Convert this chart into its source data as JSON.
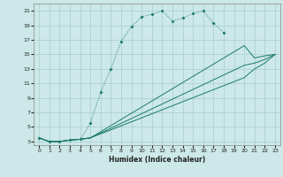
{
  "xlabel": "Humidex (Indice chaleur)",
  "bg_color": "#cce8e8",
  "grid_color": "#aacccc",
  "line_color": "#1a7a6a",
  "xlim": [
    -0.5,
    23.5
  ],
  "ylim": [
    2.5,
    22
  ],
  "xticks": [
    0,
    1,
    2,
    3,
    4,
    5,
    6,
    7,
    8,
    9,
    10,
    11,
    12,
    13,
    14,
    15,
    16,
    17,
    18,
    19,
    20,
    21,
    22,
    23
  ],
  "yticks": [
    3,
    5,
    7,
    9,
    11,
    13,
    15,
    17,
    19,
    21
  ],
  "line1_x": [
    0,
    1,
    2,
    3,
    4,
    5,
    6,
    7,
    8,
    9,
    10,
    11,
    12,
    13,
    14,
    15,
    16,
    17,
    18
  ],
  "line1_y": [
    3.5,
    3.0,
    3.0,
    3.2,
    3.3,
    5.5,
    9.8,
    13.0,
    16.8,
    18.8,
    20.2,
    20.5,
    21.0,
    19.6,
    20.0,
    20.6,
    21.0,
    19.3,
    18.0
  ],
  "line2_x": [
    0,
    1,
    2,
    3,
    4,
    5,
    20,
    21,
    22,
    23
  ],
  "line2_y": [
    3.5,
    3.0,
    3.0,
    3.2,
    3.3,
    3.5,
    16.2,
    14.5,
    14.8,
    15.0
  ],
  "line3_x": [
    0,
    1,
    2,
    3,
    4,
    5,
    20,
    21,
    22,
    23
  ],
  "line3_y": [
    3.5,
    3.0,
    3.0,
    3.2,
    3.3,
    3.5,
    13.5,
    13.8,
    14.3,
    15.0
  ],
  "line4_x": [
    0,
    1,
    2,
    3,
    4,
    5,
    20,
    21,
    22,
    23
  ],
  "line4_y": [
    3.5,
    3.0,
    3.0,
    3.2,
    3.3,
    3.5,
    11.8,
    13.0,
    13.8,
    15.0
  ]
}
